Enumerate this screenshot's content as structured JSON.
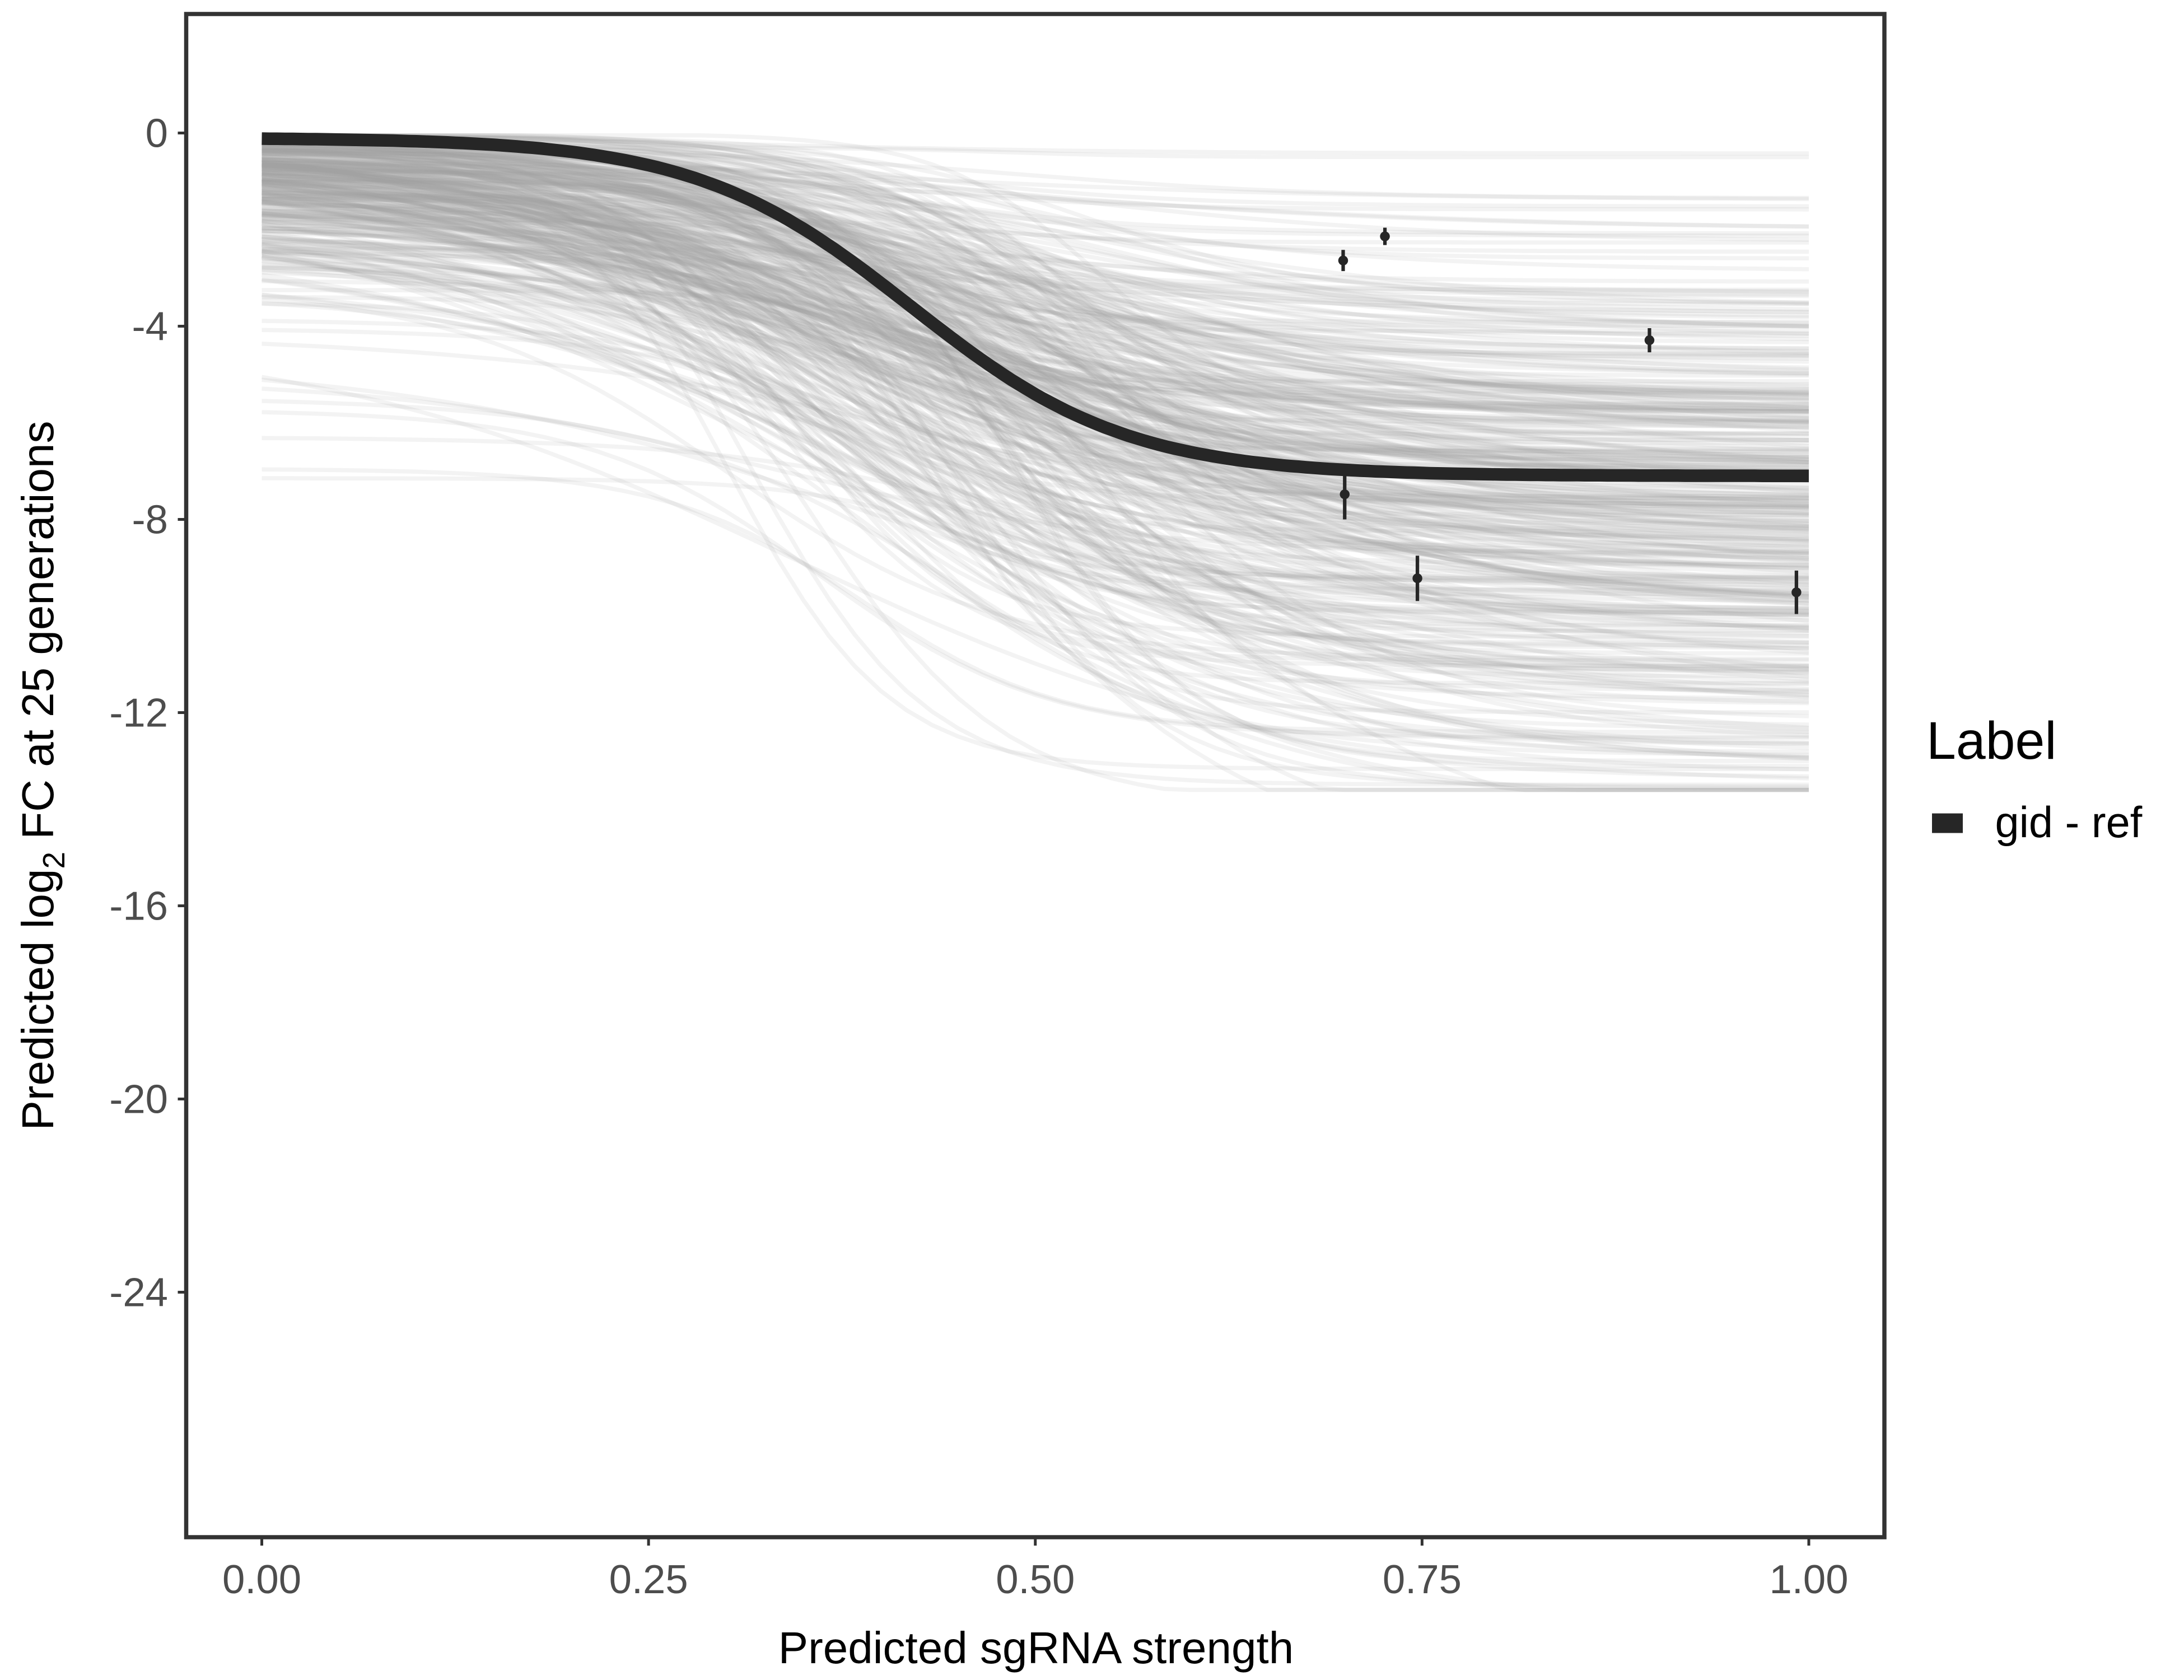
{
  "chart_data": {
    "type": "line",
    "title": "",
    "xlabel": "Predicted sgRNA strength",
    "ylabel_parts": [
      "Predicted  log",
      "2",
      " FC at 25 generations"
    ],
    "xlim": [
      -0.05,
      1.05
    ],
    "ylim": [
      -29.1,
      2.45
    ],
    "x_ticks": [
      0,
      0.25,
      0.5,
      0.75,
      1
    ],
    "x_tick_labels": [
      "0.00",
      "0.25",
      "0.50",
      "0.75",
      "1.00"
    ],
    "y_ticks": [
      0,
      -4,
      -8,
      -12,
      -16,
      -20,
      -24
    ],
    "y_tick_labels": [
      "0",
      "-4",
      "-8",
      "-12",
      "-16",
      "-20",
      "-24"
    ],
    "grid": false,
    "main_curve": {
      "name": "gid - ref",
      "form": "logistic",
      "y_start": -0.1,
      "y_drop": 7.0,
      "midpoint": 0.42,
      "scale": 0.07,
      "color": "#262626"
    },
    "posterior_draws": {
      "count": 400,
      "color": "#a6a6a6",
      "description_range_end_y": [
        -0.2,
        -13.5
      ]
    },
    "points": [
      {
        "x": 0.699,
        "y": -2.64,
        "err": 0.22
      },
      {
        "x": 0.726,
        "y": -2.14,
        "err": 0.18
      },
      {
        "x": 0.897,
        "y": -4.29,
        "err": 0.25
      },
      {
        "x": 0.7,
        "y": -7.48,
        "err": 0.52
      },
      {
        "x": 0.747,
        "y": -9.22,
        "err": 0.47
      },
      {
        "x": 0.992,
        "y": -9.51,
        "err": 0.45
      }
    ],
    "legend": {
      "title": "Label",
      "placement": "right",
      "entries": [
        {
          "label": "gid - ref",
          "color": "#262626"
        }
      ]
    }
  }
}
